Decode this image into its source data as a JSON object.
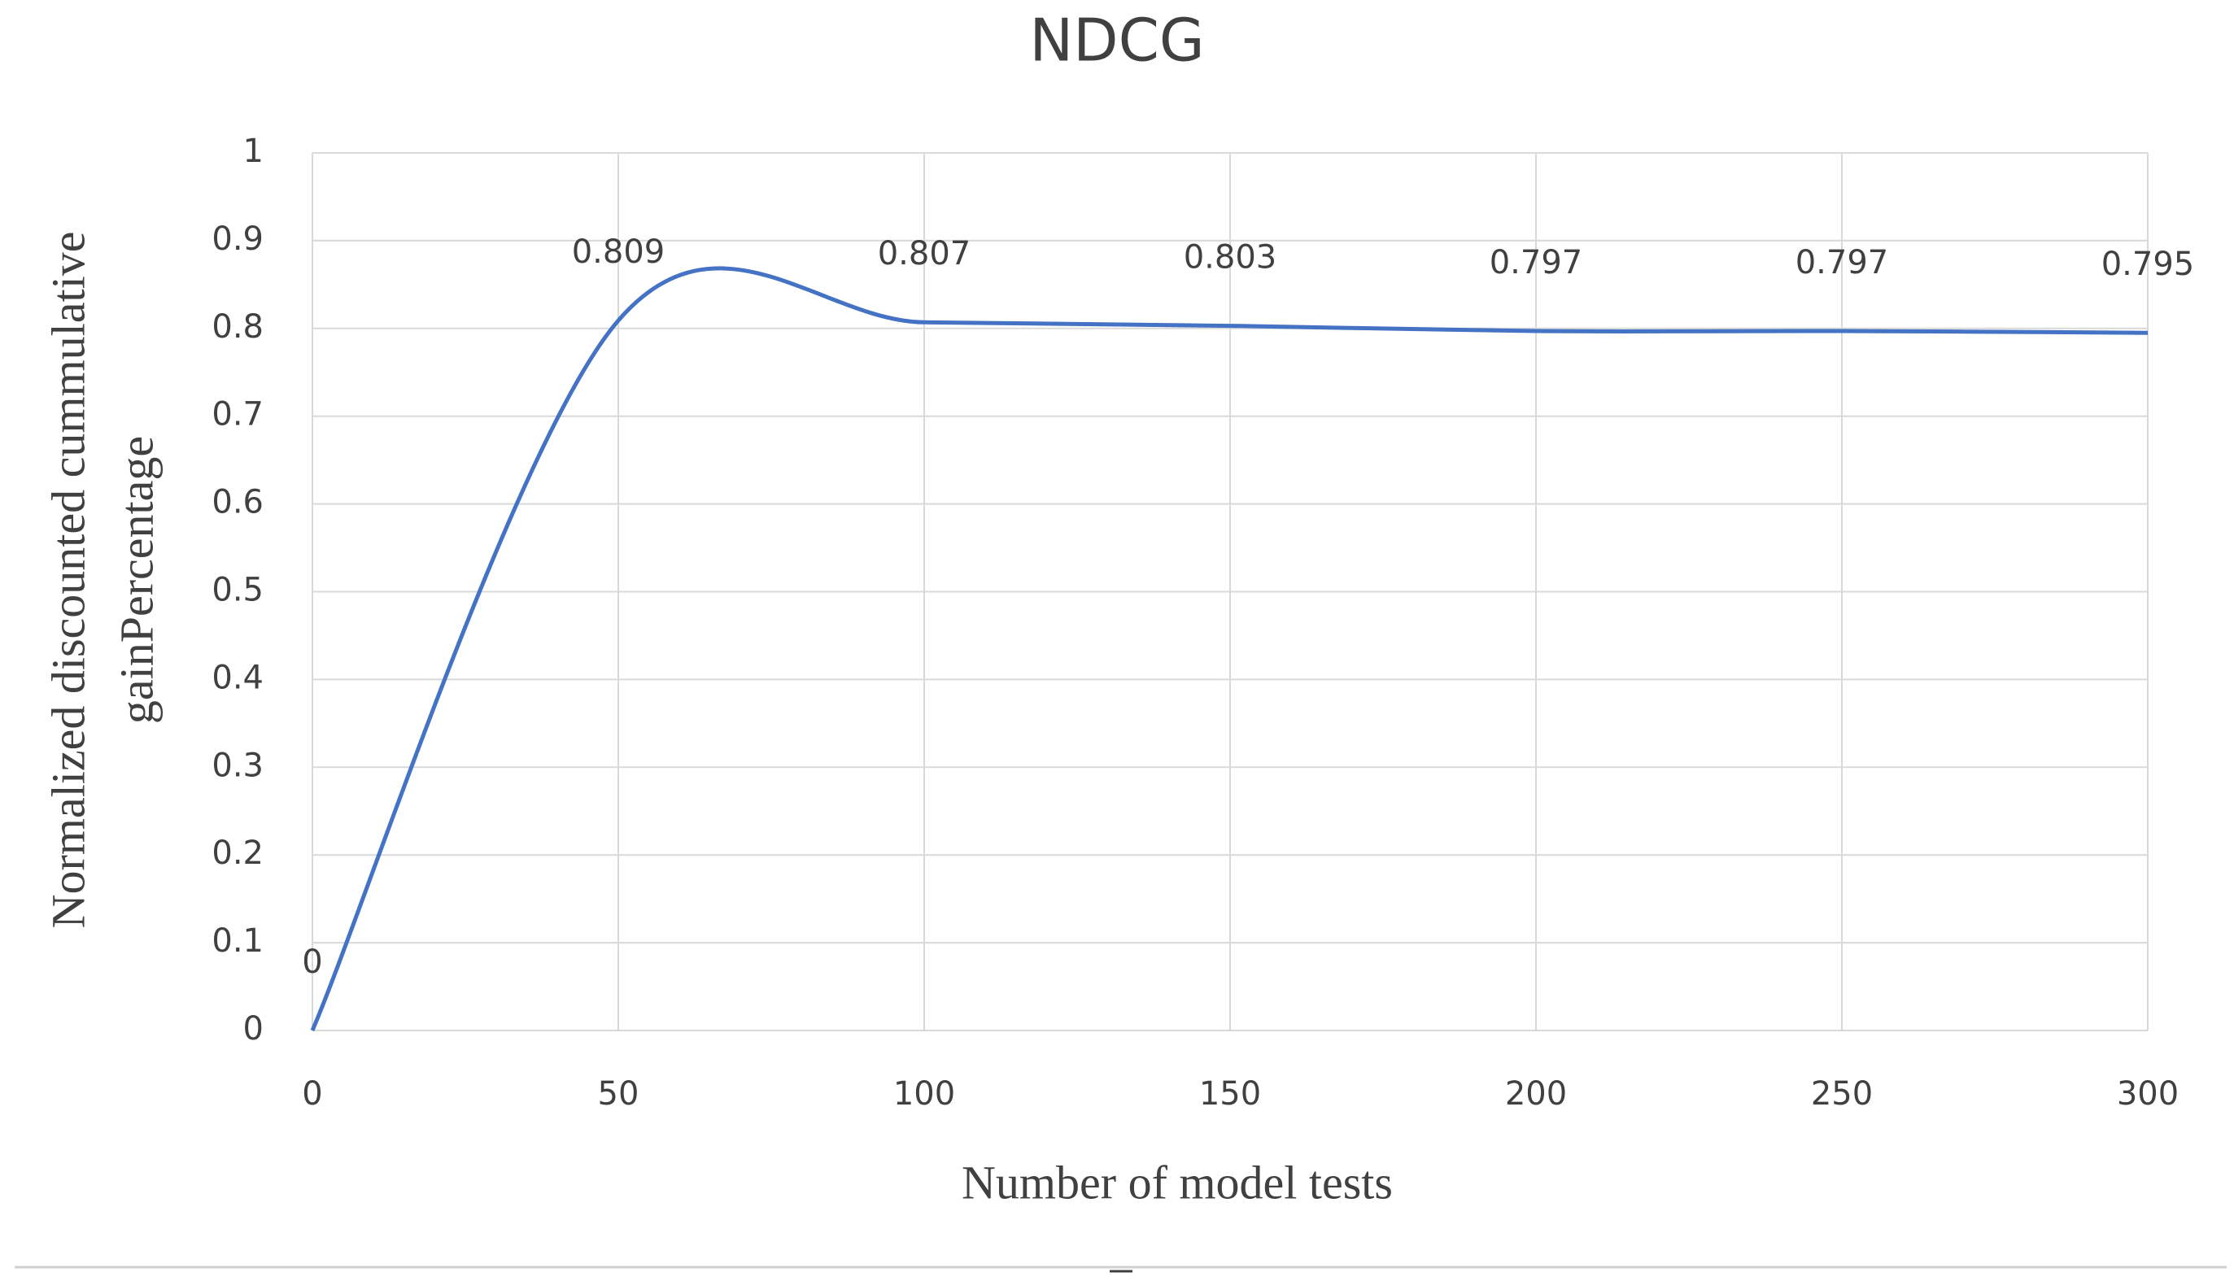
{
  "chart_data": {
    "type": "line",
    "title": "NDCG",
    "xlabel": "Number of model tests",
    "ylabel_lines": [
      "Normalized discounted cummulative",
      "gainPercentage"
    ],
    "x": [
      0,
      50,
      100,
      150,
      200,
      250,
      300
    ],
    "series": [
      {
        "name": "NDCG",
        "color": "#4472c4",
        "values": [
          0,
          0.809,
          0.807,
          0.803,
          0.797,
          0.797,
          0.795
        ]
      }
    ],
    "xlim": [
      0,
      300
    ],
    "xticks": [
      0,
      50,
      100,
      150,
      200,
      250,
      300
    ],
    "ylim": [
      0,
      1
    ],
    "yticks": [
      0,
      0.1,
      0.2,
      0.3,
      0.4,
      0.5,
      0.6,
      0.7,
      0.8,
      0.9,
      1
    ],
    "grid": true,
    "smooth": true,
    "data_labels": true
  }
}
